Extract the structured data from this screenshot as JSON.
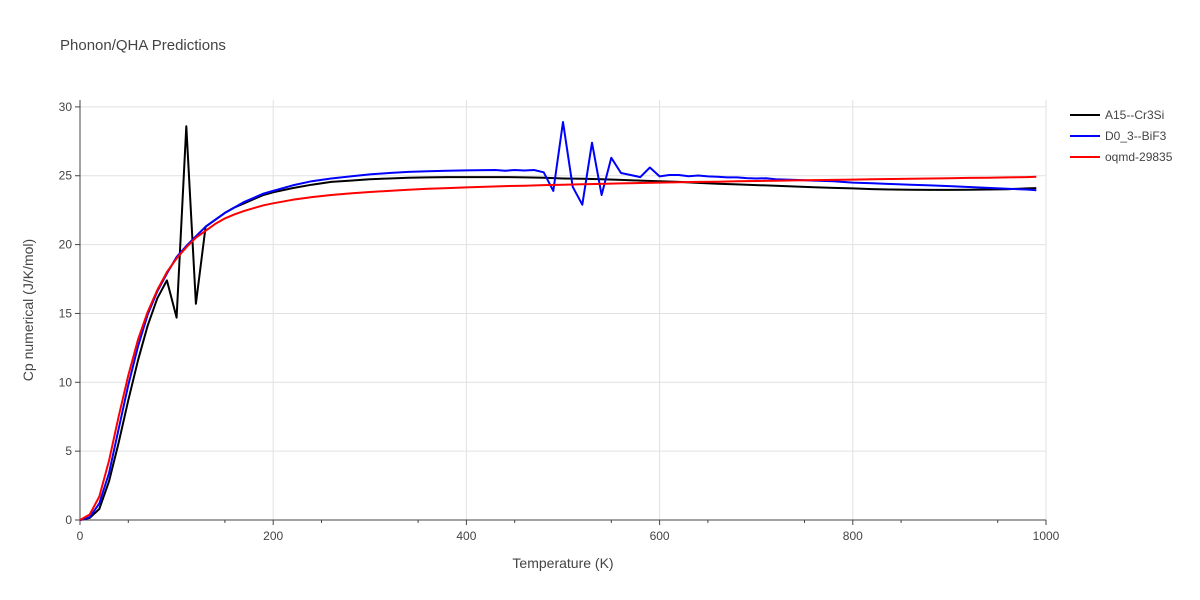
{
  "chart_data": {
    "type": "line",
    "title": "Phonon/QHA Predictions",
    "xlabel": "Temperature (K)",
    "ylabel": "Cp numerical (J/K/mol)",
    "xlim": [
      0,
      1000
    ],
    "ylim": [
      0,
      30.5
    ],
    "xticks": [
      0,
      200,
      400,
      600,
      800,
      1000
    ],
    "yticks": [
      0,
      5,
      10,
      15,
      20,
      25,
      30
    ],
    "grid": true,
    "legend_position": "top-right",
    "series": [
      {
        "name": "A15--Cr3Si",
        "color": "#000000",
        "x": [
          0,
          10,
          20,
          30,
          40,
          50,
          60,
          70,
          80,
          90,
          100,
          110,
          120,
          130,
          140,
          150,
          160,
          170,
          180,
          190,
          200,
          220,
          240,
          260,
          280,
          300,
          320,
          340,
          360,
          380,
          400,
          420,
          440,
          460,
          480,
          500,
          520,
          540,
          560,
          580,
          600,
          620,
          640,
          660,
          680,
          700,
          720,
          740,
          760,
          780,
          800,
          820,
          840,
          860,
          880,
          900,
          920,
          940,
          960,
          980,
          990
        ],
        "y": [
          0,
          0.15,
          0.8,
          2.8,
          5.6,
          8.7,
          11.6,
          14.1,
          16.1,
          17.4,
          14.7,
          28.6,
          15.7,
          21.3,
          21.8,
          22.3,
          22.7,
          23.0,
          23.3,
          23.6,
          23.8,
          24.1,
          24.35,
          24.55,
          24.65,
          24.75,
          24.8,
          24.85,
          24.88,
          24.9,
          24.9,
          24.9,
          24.9,
          24.88,
          24.85,
          24.8,
          24.78,
          24.75,
          24.7,
          24.65,
          24.6,
          24.55,
          24.48,
          24.42,
          24.37,
          24.32,
          24.27,
          24.22,
          24.17,
          24.12,
          24.08,
          24.03,
          24.0,
          23.98,
          23.97,
          23.97,
          23.98,
          24.0,
          24.02,
          24.08,
          24.1
        ]
      },
      {
        "name": "D0_3--BiF3",
        "color": "#0000ff",
        "x": [
          0,
          10,
          20,
          30,
          40,
          50,
          60,
          70,
          80,
          90,
          100,
          110,
          120,
          130,
          140,
          150,
          160,
          170,
          180,
          190,
          200,
          220,
          240,
          260,
          280,
          300,
          320,
          340,
          360,
          380,
          400,
          420,
          430,
          440,
          450,
          460,
          470,
          480,
          490,
          500,
          510,
          520,
          530,
          540,
          550,
          560,
          570,
          580,
          590,
          600,
          610,
          620,
          630,
          640,
          650,
          660,
          670,
          680,
          690,
          700,
          710,
          720,
          740,
          760,
          780,
          800,
          820,
          840,
          860,
          880,
          900,
          920,
          940,
          960,
          980,
          990
        ],
        "y": [
          0,
          0.2,
          1.2,
          3.4,
          6.6,
          9.8,
          12.6,
          14.9,
          16.6,
          17.9,
          19.1,
          19.9,
          20.6,
          21.3,
          21.8,
          22.3,
          22.7,
          23.1,
          23.4,
          23.7,
          23.9,
          24.3,
          24.6,
          24.8,
          24.95,
          25.1,
          25.2,
          25.28,
          25.32,
          25.36,
          25.39,
          25.41,
          25.42,
          25.36,
          25.42,
          25.38,
          25.42,
          25.25,
          23.9,
          28.9,
          24.2,
          22.9,
          27.4,
          23.6,
          26.3,
          25.2,
          25.05,
          24.9,
          25.6,
          24.95,
          25.05,
          25.05,
          24.97,
          25.02,
          24.95,
          24.92,
          24.88,
          24.88,
          24.83,
          24.8,
          24.82,
          24.75,
          24.7,
          24.65,
          24.6,
          24.5,
          24.45,
          24.4,
          24.35,
          24.3,
          24.25,
          24.18,
          24.12,
          24.05,
          24.0,
          23.95
        ]
      },
      {
        "name": "oqmd-29835",
        "color": "#ff0000",
        "x": [
          0,
          10,
          20,
          30,
          40,
          50,
          60,
          70,
          80,
          90,
          100,
          110,
          120,
          130,
          140,
          150,
          160,
          170,
          180,
          190,
          200,
          220,
          240,
          260,
          280,
          300,
          320,
          340,
          360,
          380,
          400,
          420,
          440,
          460,
          480,
          500,
          520,
          540,
          560,
          580,
          600,
          620,
          640,
          660,
          680,
          700,
          720,
          740,
          760,
          780,
          800,
          820,
          840,
          860,
          880,
          900,
          920,
          940,
          960,
          980,
          990
        ],
        "y": [
          0,
          0.4,
          1.7,
          4.3,
          7.5,
          10.5,
          13.1,
          15.1,
          16.7,
          18.0,
          19.0,
          19.8,
          20.5,
          21.0,
          21.5,
          21.9,
          22.2,
          22.45,
          22.65,
          22.85,
          23.0,
          23.25,
          23.45,
          23.6,
          23.72,
          23.82,
          23.9,
          23.98,
          24.05,
          24.1,
          24.15,
          24.2,
          24.25,
          24.28,
          24.32,
          24.35,
          24.38,
          24.41,
          24.44,
          24.47,
          24.5,
          24.52,
          24.55,
          24.57,
          24.6,
          24.62,
          24.64,
          24.66,
          24.68,
          24.7,
          24.72,
          24.74,
          24.76,
          24.78,
          24.8,
          24.82,
          24.84,
          24.86,
          24.88,
          24.9,
          24.92
        ]
      }
    ]
  }
}
